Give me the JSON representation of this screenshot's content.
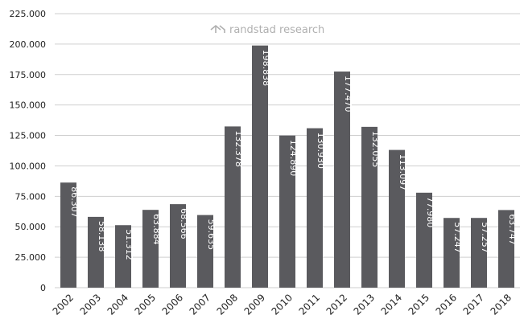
{
  "watermark": {
    "text": "randstad research",
    "icon": "randstad-logo-icon",
    "color": "#b0b0b0"
  },
  "chart_data": {
    "type": "bar",
    "categories": [
      "2002",
      "2003",
      "2004",
      "2005",
      "2006",
      "2007",
      "2008",
      "2009",
      "2010",
      "2011",
      "2012",
      "2013",
      "2014",
      "2015",
      "2016",
      "2017",
      "2018"
    ],
    "values": [
      86307,
      58138,
      51312,
      63884,
      68566,
      59635,
      132378,
      198838,
      124890,
      130930,
      177470,
      132055,
      113097,
      77980,
      57247,
      57257,
      63747
    ],
    "value_labels": [
      "86.307",
      "58.138",
      "51.312",
      "63.884",
      "68.566",
      "59.635",
      "132.378",
      "198.838",
      "124.890",
      "130.930",
      "177.470",
      "132.055",
      "113.097",
      "77.980",
      "57.247",
      "57.257",
      "63.747"
    ],
    "yticks": [
      0,
      25000,
      50000,
      75000,
      100000,
      125000,
      150000,
      175000,
      200000,
      225000
    ],
    "ytick_labels": [
      "0",
      "25.000",
      "50.000",
      "75.000",
      "100.000",
      "125.000",
      "150.000",
      "175.000",
      "200.000",
      "225.000"
    ],
    "ylim": [
      0,
      225000
    ],
    "grid": true,
    "legend": "none",
    "title": "",
    "xlabel": "",
    "ylabel": "",
    "bar_color": "#5a5a5e",
    "grid_color": "#cfcfcf",
    "label_color": "#ffffff"
  }
}
